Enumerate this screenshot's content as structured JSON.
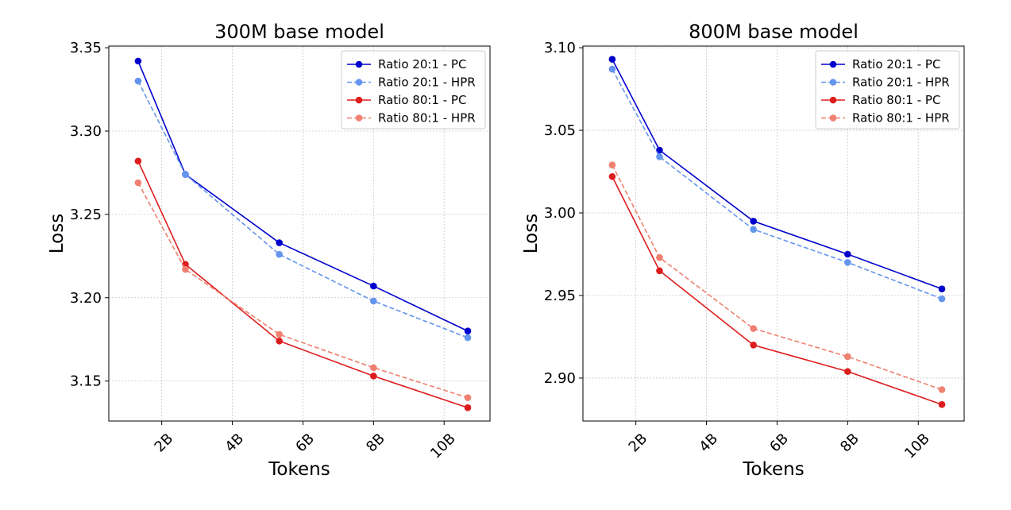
{
  "chart_data": [
    {
      "type": "line",
      "title": "300M base model",
      "xlabel": "Tokens",
      "ylabel": "Loss",
      "x": [
        1.33,
        2.67,
        5.33,
        8.0,
        10.67
      ],
      "xlim": [
        0.5,
        11.3
      ],
      "ylim": [
        3.126,
        3.351
      ],
      "x_ticks": [
        2,
        4,
        6,
        8,
        10
      ],
      "x_tick_labels": [
        "2B",
        "4B",
        "6B",
        "8B",
        "10B"
      ],
      "y_ticks": [
        3.15,
        3.2,
        3.25,
        3.3,
        3.35
      ],
      "y_tick_labels": [
        "3.15",
        "3.20",
        "3.25",
        "3.30",
        "3.35"
      ],
      "grid": true,
      "legend_position": "top-right",
      "series": [
        {
          "name": "Ratio 20:1 - PC",
          "color": "#0000cd",
          "style": "solid",
          "values": [
            3.342,
            3.274,
            3.233,
            3.207,
            3.18
          ]
        },
        {
          "name": "Ratio 20:1 - HPR",
          "color": "#6495ed",
          "style": "dashed",
          "values": [
            3.33,
            3.274,
            3.226,
            3.198,
            3.176
          ]
        },
        {
          "name": "Ratio 80:1 - PC",
          "color": "#dd1c1c",
          "style": "solid",
          "values": [
            3.282,
            3.22,
            3.174,
            3.153,
            3.134
          ]
        },
        {
          "name": "Ratio 80:1 - HPR",
          "color": "#f08070",
          "style": "dashed",
          "values": [
            3.269,
            3.217,
            3.178,
            3.158,
            3.14
          ]
        }
      ]
    },
    {
      "type": "line",
      "title": "800M base model",
      "xlabel": "Tokens",
      "ylabel": "Loss",
      "x": [
        1.33,
        2.67,
        5.33,
        8.0,
        10.67
      ],
      "xlim": [
        0.5,
        11.3
      ],
      "ylim": [
        2.874,
        3.101
      ],
      "x_ticks": [
        2,
        4,
        6,
        8,
        10
      ],
      "x_tick_labels": [
        "2B",
        "4B",
        "6B",
        "8B",
        "10B"
      ],
      "y_ticks": [
        2.9,
        2.95,
        3.0,
        3.05,
        3.1
      ],
      "y_tick_labels": [
        "2.90",
        "2.95",
        "3.00",
        "3.05",
        "3.10"
      ],
      "grid": true,
      "legend_position": "top-right",
      "series": [
        {
          "name": "Ratio 20:1 - PC",
          "color": "#0000cd",
          "style": "solid",
          "values": [
            3.093,
            3.038,
            2.995,
            2.975,
            2.954
          ]
        },
        {
          "name": "Ratio 20:1 - HPR",
          "color": "#6495ed",
          "style": "dashed",
          "values": [
            3.087,
            3.034,
            2.99,
            2.97,
            2.948
          ]
        },
        {
          "name": "Ratio 80:1 - PC",
          "color": "#dd1c1c",
          "style": "solid",
          "values": [
            3.022,
            2.965,
            2.92,
            2.904,
            2.884
          ]
        },
        {
          "name": "Ratio 80:1 - HPR",
          "color": "#f08070",
          "style": "dashed",
          "values": [
            3.029,
            2.973,
            2.93,
            2.913,
            2.893
          ]
        }
      ]
    }
  ]
}
